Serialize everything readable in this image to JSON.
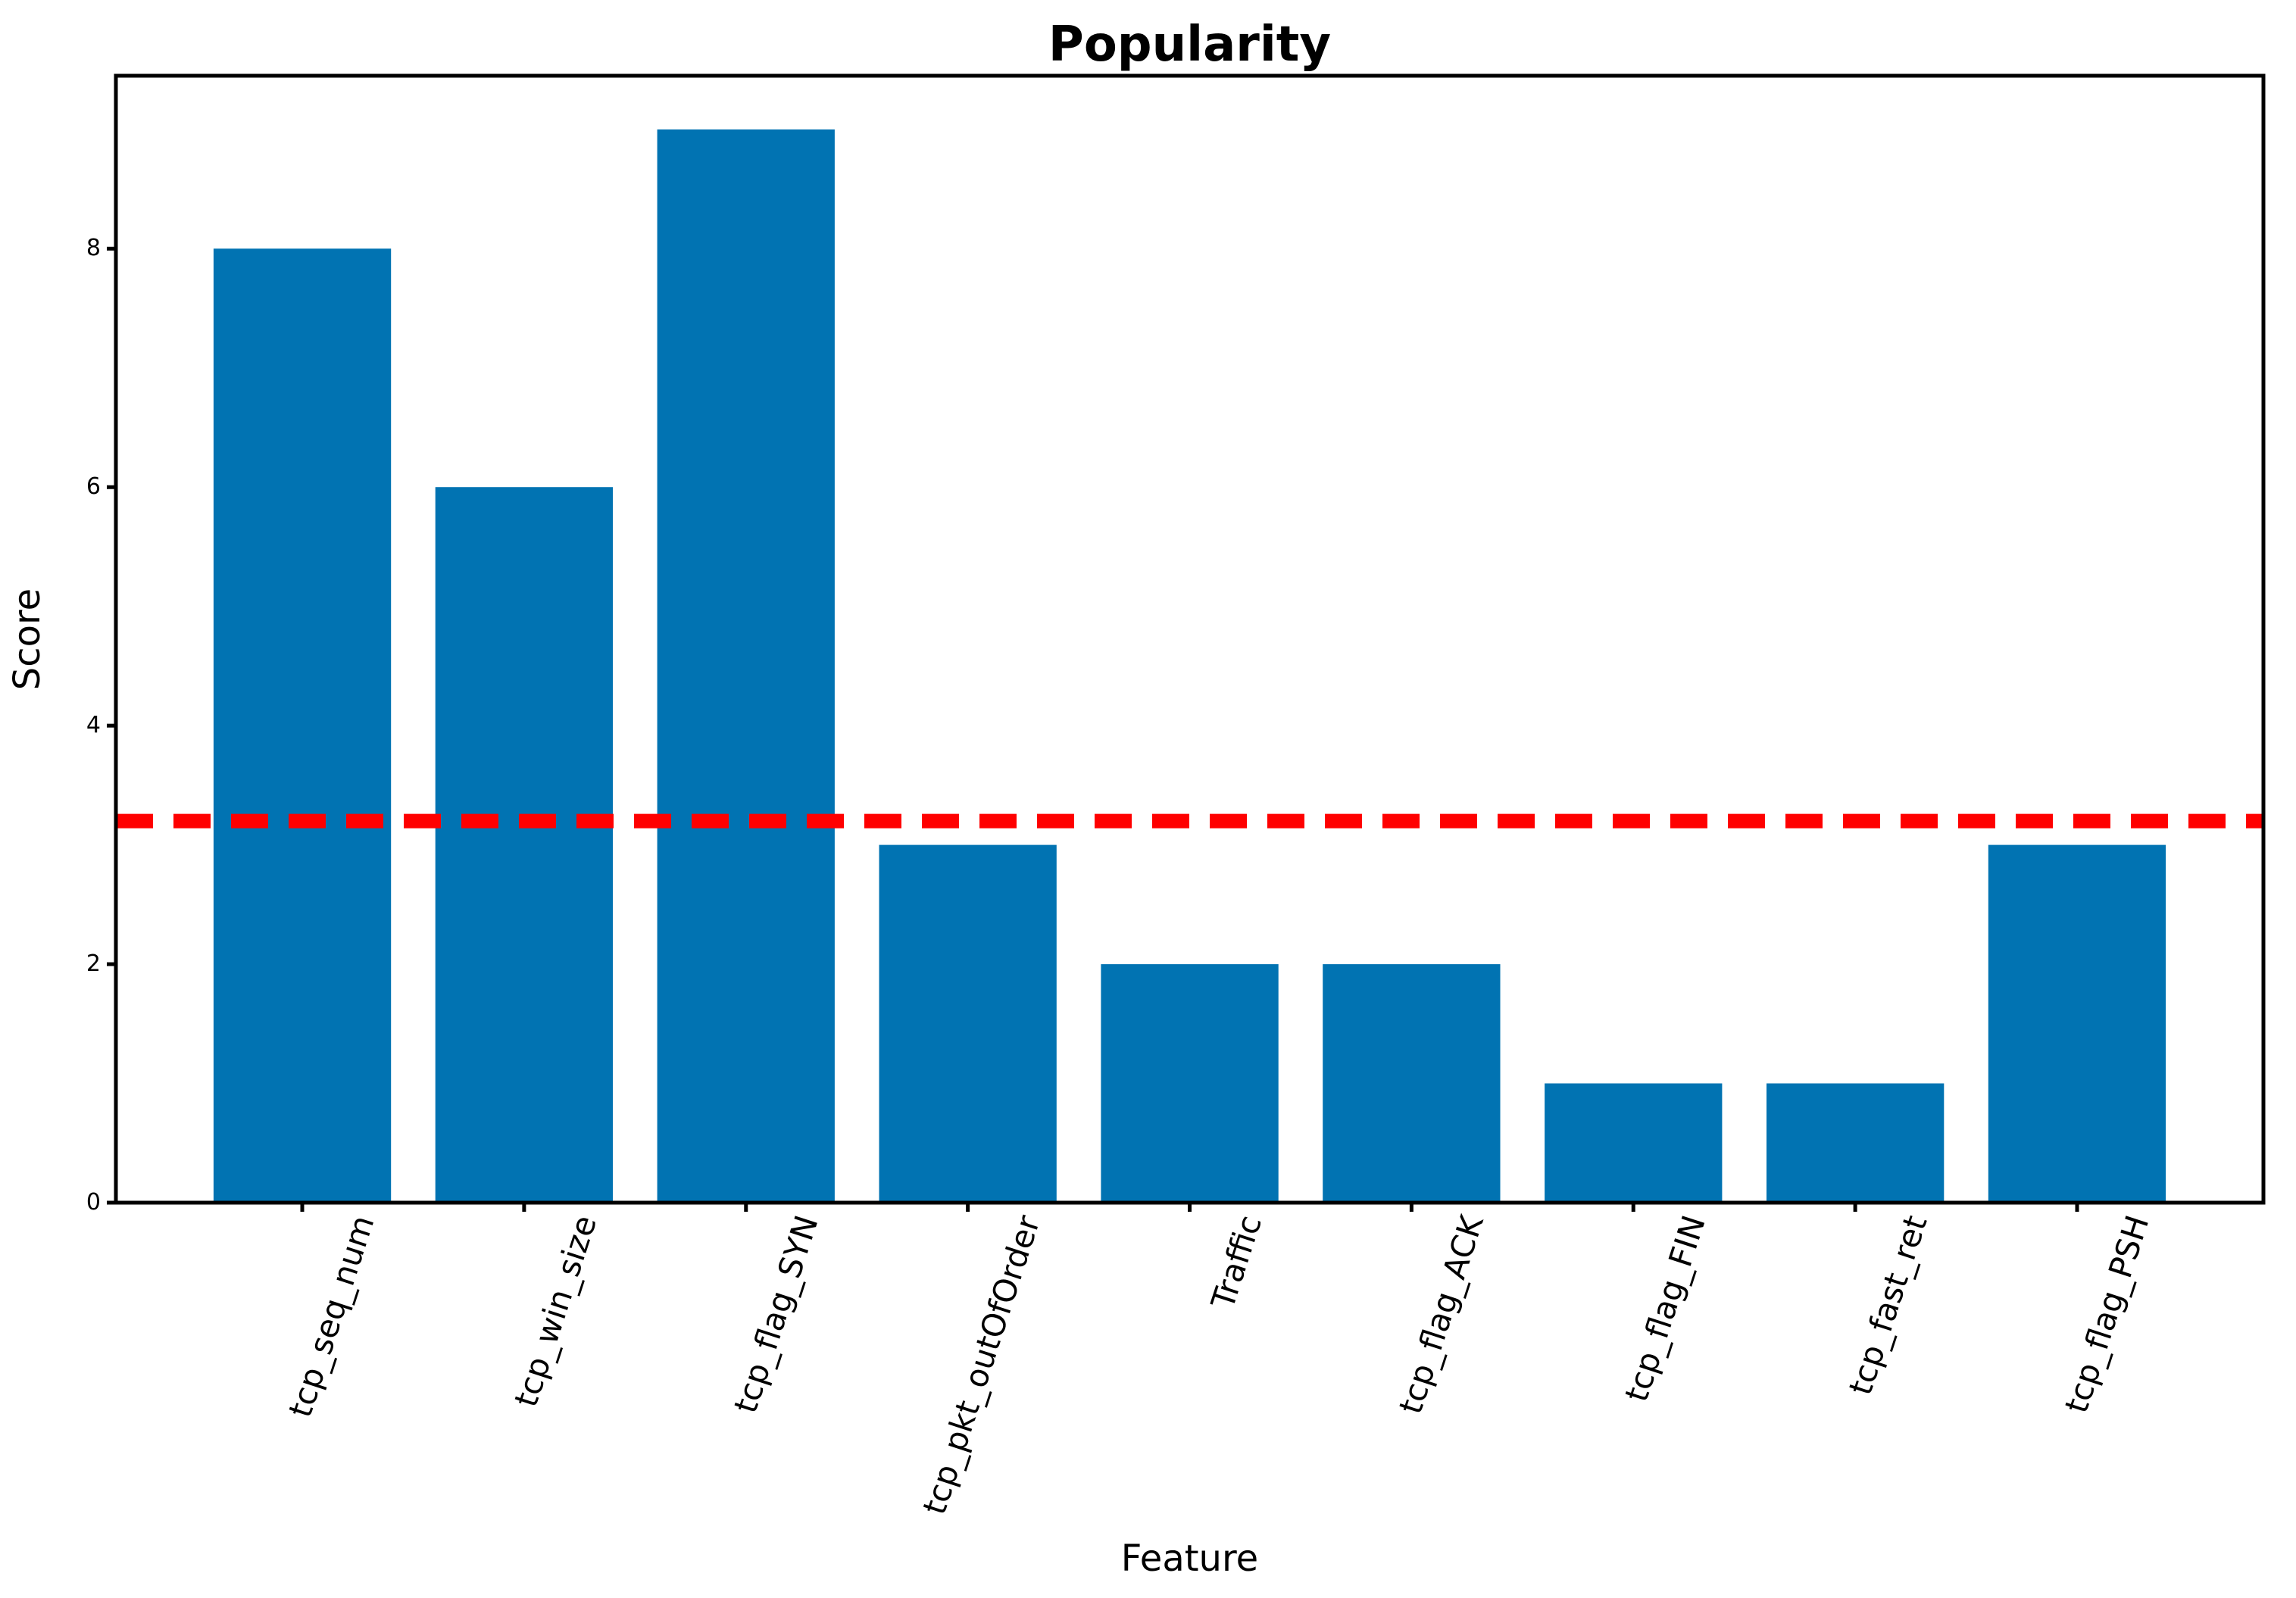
{
  "chart_data": {
    "type": "bar",
    "title": "Popularity",
    "xlabel": "Feature",
    "ylabel": "Score",
    "categories": [
      "tcp_seq_num",
      "tcp_win_size",
      "tcp_flag_SYN",
      "tcp_pkt_outOfOrder",
      "Traffic",
      "tcp_flag_ACK",
      "tcp_flag_FIN",
      "tcp_fast_ret",
      "tcp_flag_PSH"
    ],
    "values": [
      8,
      6,
      9,
      3,
      2,
      2,
      1,
      1,
      3
    ],
    "yticks": [
      0,
      2,
      4,
      6,
      8
    ],
    "ylim": [
      0,
      9.45
    ],
    "bar_color": "#0173b2",
    "axis_color": "#000000",
    "background_color": "#ffffff",
    "grid": false,
    "legend_position": "none",
    "xtick_rotation_deg": 72,
    "threshold_line": {
      "value": 3.2,
      "color": "#ff0000",
      "style": "dashed"
    }
  }
}
